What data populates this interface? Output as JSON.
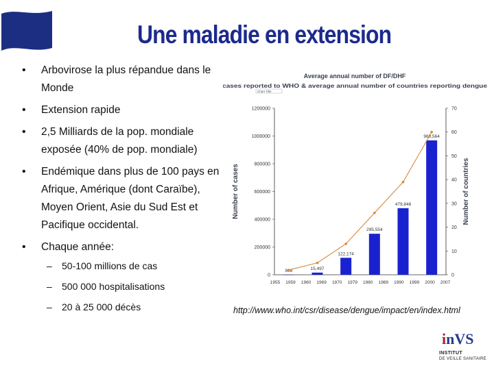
{
  "slide": {
    "title": "Une maladie en extension",
    "colors": {
      "title": "#1c2a8c",
      "flag": "#1c2e82",
      "bar": "#1a22d0",
      "line": "#d9883a",
      "chart_title": "#3a4050"
    },
    "bullets": [
      {
        "text": "Arbovirose la plus répandue dans le Monde"
      },
      {
        "text": "Extension rapide"
      },
      {
        "text": "2,5 Milliards de la pop. mondiale exposée (40% de pop. mondiale)"
      },
      {
        "text": "Endémique dans plus de 100 pays en Afrique, Amérique (dont Caraïbe), Moyen Orient, Asie du Sud Est et Pacifique occidental."
      },
      {
        "text": "Chaque année:",
        "sub": [
          "50-100 millions de cas",
          "500 000 hospitalisations",
          "20 à 25 000 décès"
        ]
      }
    ],
    "source_url": "http://www.who.int/csr/disease/dengue/impact/en/index.html",
    "logo": {
      "text": "InVS",
      "line1": "INSTITUT",
      "line2": "DE VEILLE SANITAIRE"
    }
  },
  "chart_data": {
    "type": "bar",
    "title": "Average annual number of DF/DHF",
    "subtitle": "cases reported to WHO & average annual number of countries reporting dengue",
    "legend_label": "Chart Title",
    "categories": [
      "1955 - 1959",
      "1960 - 1969",
      "1970 - 1979",
      "1980 - 1989",
      "1990 - 1999",
      "2000 - 2007"
    ],
    "series": [
      {
        "name": "Number of cases",
        "values": [
          908,
          15497,
          122174,
          295554,
          479848,
          968564
        ],
        "data_labels": [
          "908",
          "15,497",
          "122,174",
          "295,554",
          "479,848",
          "968,564"
        ]
      },
      {
        "name": "Number of countries",
        "values": [
          2,
          5,
          13,
          26,
          39,
          60
        ]
      }
    ],
    "ylabel": "Number of cases",
    "ylim": [
      0,
      1200000
    ],
    "yticks": [
      "0",
      "200000",
      "400000",
      "600000",
      "800000",
      "1000000",
      "1200000"
    ],
    "y2label": "Number of countries",
    "y2lim": [
      0,
      70
    ],
    "y2ticks": [
      "0",
      "10",
      "20",
      "30",
      "40",
      "50",
      "60",
      "70"
    ],
    "xticks": [
      "1955",
      "1959",
      "1960",
      "1969",
      "1970",
      "1979",
      "1980",
      "1989",
      "1990",
      "1999",
      "2000",
      "2007"
    ]
  }
}
